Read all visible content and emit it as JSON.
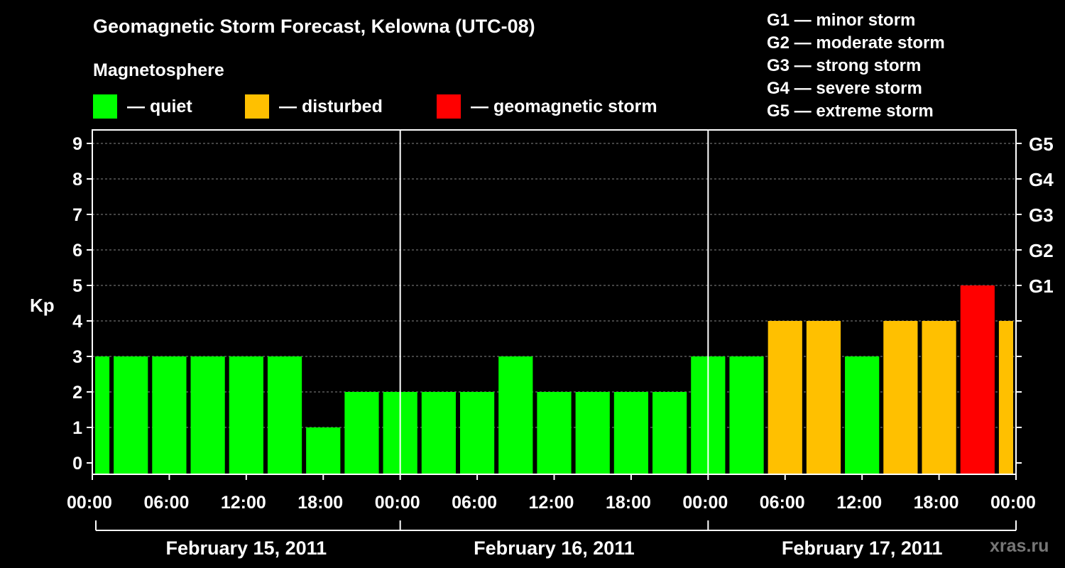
{
  "title": "Geomagnetic Storm Forecast, Kelowna (UTC-08)",
  "legend": {
    "title": "Magnetosphere",
    "items": [
      {
        "label": "— quiet",
        "color": "#00ff00"
      },
      {
        "label": "— disturbed",
        "color": "#ffc000"
      },
      {
        "label": "— geomagnetic storm",
        "color": "#ff0000"
      }
    ]
  },
  "scale_notes": [
    "G1 — minor storm",
    "G2 — moderate storm",
    "G3 — strong storm",
    "G4 — severe storm",
    "G5 — extreme storm"
  ],
  "watermark": "xras.ru",
  "chart_data": {
    "type": "bar",
    "ylabel": "Kp",
    "ylim": [
      0,
      9
    ],
    "yticks": [
      "0",
      "1",
      "2",
      "3",
      "4",
      "5",
      "6",
      "7",
      "8",
      "9"
    ],
    "right_ticks": [
      {
        "kp": 5,
        "label": "G1"
      },
      {
        "kp": 6,
        "label": "G2"
      },
      {
        "kp": 7,
        "label": "G3"
      },
      {
        "kp": 8,
        "label": "G4"
      },
      {
        "kp": 9,
        "label": "G5"
      }
    ],
    "xtick_labels": [
      "00:00",
      "06:00",
      "12:00",
      "18:00",
      "00:00",
      "06:00",
      "12:00",
      "18:00",
      "00:00",
      "06:00",
      "12:00",
      "18:00",
      "00:00"
    ],
    "days": [
      "February 15, 2011",
      "February 16, 2011",
      "February 17, 2011"
    ],
    "grid": true,
    "colors": {
      "quiet": "#00ff00",
      "disturbed": "#ffc000",
      "storm": "#ff0000"
    },
    "series": [
      {
        "values": [
          3,
          3,
          3,
          3,
          3,
          3,
          1,
          2,
          2,
          2,
          2,
          3,
          2,
          2,
          2,
          2,
          3,
          3,
          4,
          4,
          3,
          4,
          4,
          5,
          4
        ],
        "categories": [
          "quiet",
          "quiet",
          "quiet",
          "quiet",
          "quiet",
          "quiet",
          "quiet",
          "quiet",
          "quiet",
          "quiet",
          "quiet",
          "quiet",
          "quiet",
          "quiet",
          "quiet",
          "quiet",
          "quiet",
          "quiet",
          "disturbed",
          "disturbed",
          "quiet",
          "disturbed",
          "disturbed",
          "storm",
          "disturbed"
        ]
      }
    ]
  }
}
